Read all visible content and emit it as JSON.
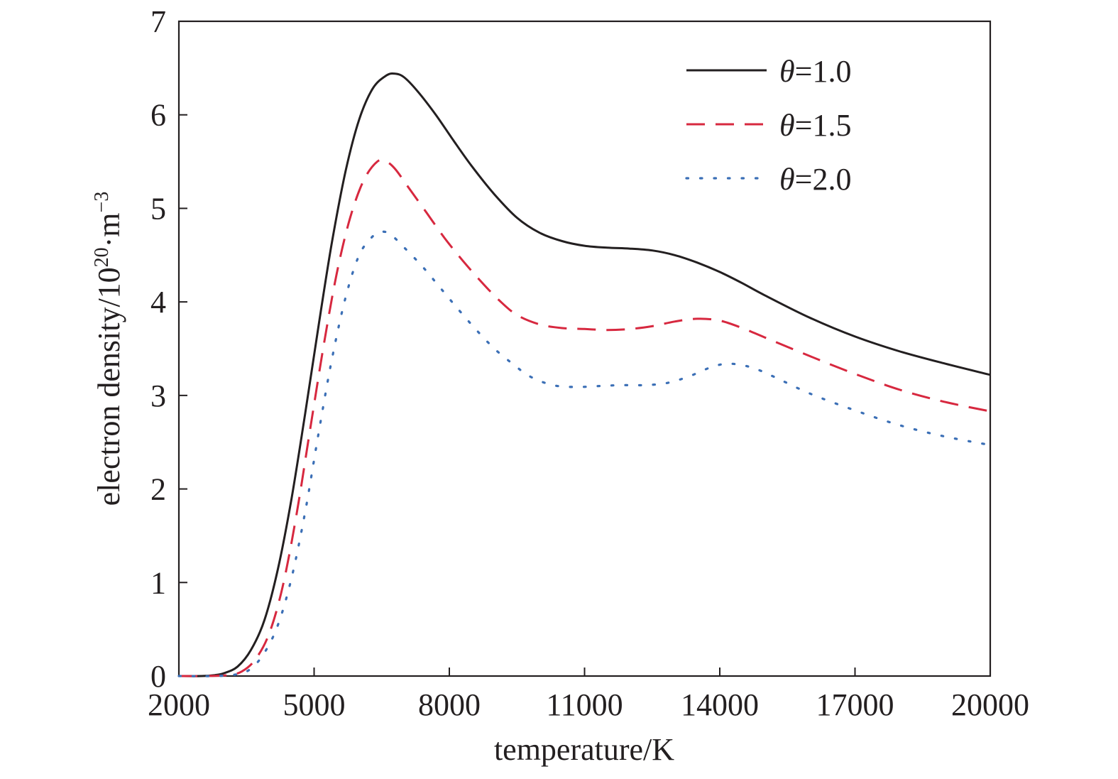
{
  "chart_data": {
    "type": "line",
    "title": "",
    "xlabel": "temperature/K",
    "ylabel": {
      "prefix": "electron density/10",
      "exp1": "20",
      "middle": "·m",
      "exp2": "−3"
    },
    "xlim": [
      2000,
      20000
    ],
    "ylim": [
      0,
      7
    ],
    "xticks": [
      2000,
      5000,
      8000,
      11000,
      14000,
      17000,
      20000
    ],
    "yticks": [
      0,
      1,
      2,
      3,
      4,
      5,
      6,
      7
    ],
    "grid": false,
    "legend_position": "top-right",
    "series": [
      {
        "name": "θ=1.0",
        "name_symbol": "θ",
        "name_value": "=1.0",
        "color": "#231f20",
        "style": "solid",
        "x": [
          2000,
          2500,
          2800,
          3000,
          3300,
          3600,
          3900,
          4200,
          4500,
          4800,
          5100,
          5400,
          5700,
          6000,
          6300,
          6600,
          6800,
          7000,
          7300,
          7700,
          8100,
          8500,
          9000,
          9500,
          10000,
          10500,
          11000,
          11500,
          12000,
          12500,
          13000,
          13500,
          14000,
          14500,
          15000,
          16000,
          17000,
          18000,
          19000,
          20000
        ],
        "y": [
          0,
          0,
          0.01,
          0.03,
          0.1,
          0.28,
          0.6,
          1.15,
          1.9,
          2.8,
          3.75,
          4.65,
          5.4,
          5.95,
          6.28,
          6.42,
          6.44,
          6.4,
          6.25,
          6.0,
          5.72,
          5.45,
          5.15,
          4.9,
          4.74,
          4.65,
          4.6,
          4.58,
          4.57,
          4.55,
          4.5,
          4.42,
          4.32,
          4.2,
          4.07,
          3.83,
          3.63,
          3.47,
          3.34,
          3.22
        ]
      },
      {
        "name": "θ=1.5",
        "name_symbol": "θ",
        "name_value": "=1.5",
        "color": "#d7283f",
        "style": "dashed",
        "x": [
          2000,
          2600,
          3100,
          3400,
          3700,
          4000,
          4300,
          4600,
          4900,
          5200,
          5500,
          5800,
          6100,
          6400,
          6600,
          6800,
          7100,
          7500,
          7900,
          8300,
          8700,
          9100,
          9500,
          10000,
          10500,
          11000,
          11500,
          12000,
          12500,
          13000,
          13500,
          14000,
          14500,
          15000,
          16000,
          17000,
          18000,
          19000,
          20000
        ],
        "y": [
          0,
          0,
          0.01,
          0.05,
          0.18,
          0.45,
          0.95,
          1.7,
          2.6,
          3.5,
          4.3,
          4.9,
          5.3,
          5.5,
          5.5,
          5.42,
          5.22,
          4.95,
          4.68,
          4.44,
          4.22,
          4.02,
          3.86,
          3.76,
          3.72,
          3.71,
          3.7,
          3.71,
          3.74,
          3.79,
          3.82,
          3.8,
          3.72,
          3.62,
          3.42,
          3.23,
          3.06,
          2.93,
          2.83
        ]
      },
      {
        "name": "θ=2.0",
        "name_symbol": "θ",
        "name_value": "=2.0",
        "color": "#3b6fb6",
        "style": "dotted",
        "x": [
          2000,
          2800,
          3300,
          3600,
          3900,
          4200,
          4500,
          4800,
          5100,
          5400,
          5700,
          6000,
          6300,
          6500,
          6700,
          7000,
          7400,
          7800,
          8200,
          8600,
          9000,
          9400,
          9800,
          10300,
          10800,
          11300,
          11800,
          12300,
          12800,
          13300,
          13800,
          14200,
          14700,
          15200,
          16000,
          17000,
          18000,
          19000,
          20000
        ],
        "y": [
          0,
          0,
          0.02,
          0.08,
          0.25,
          0.55,
          1.05,
          1.75,
          2.6,
          3.4,
          4.05,
          4.5,
          4.7,
          4.75,
          4.72,
          4.58,
          4.38,
          4.15,
          3.92,
          3.7,
          3.5,
          3.34,
          3.2,
          3.11,
          3.09,
          3.1,
          3.11,
          3.11,
          3.13,
          3.2,
          3.3,
          3.34,
          3.3,
          3.2,
          3.02,
          2.84,
          2.68,
          2.56,
          2.47
        ]
      }
    ]
  }
}
